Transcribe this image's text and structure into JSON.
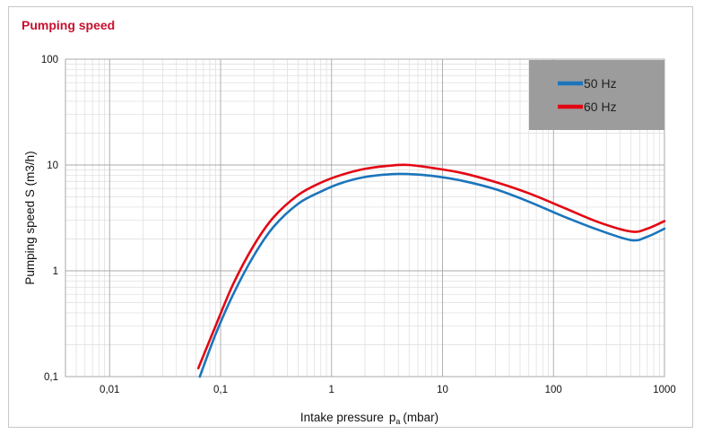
{
  "chart_data": {
    "type": "line",
    "title": "Pumping speed",
    "xlabel": "Intake pressure",
    "xlabel_symbol": "p",
    "xlabel_subscript": "a",
    "xlabel_unit": "(mbar)",
    "ylabel": "Pumping speed S (m3/h)",
    "x_scale": "log",
    "y_scale": "log",
    "xlim": [
      0.004,
      1000
    ],
    "ylim": [
      0.1,
      100
    ],
    "x_ticks": [
      {
        "value": 0.01,
        "label": "0,01"
      },
      {
        "value": 0.1,
        "label": "0,1"
      },
      {
        "value": 1,
        "label": "1"
      },
      {
        "value": 10,
        "label": "10"
      },
      {
        "value": 100,
        "label": "100"
      },
      {
        "value": 1000,
        "label": "1000"
      }
    ],
    "y_ticks": [
      {
        "value": 0.1,
        "label": "0,1"
      },
      {
        "value": 1,
        "label": "1"
      },
      {
        "value": 10,
        "label": "10"
      },
      {
        "value": 100,
        "label": "100"
      }
    ],
    "grid": true,
    "legend_position": "top-right",
    "series": [
      {
        "name": "50 Hz",
        "color": "#1b75bc",
        "x": [
          0.065,
          0.09,
          0.13,
          0.2,
          0.3,
          0.5,
          0.8,
          1.2,
          2,
          3.5,
          5,
          8,
          15,
          30,
          60,
          120,
          250,
          500,
          700,
          1000
        ],
        "y": [
          0.1,
          0.25,
          0.6,
          1.4,
          2.6,
          4.3,
          5.6,
          6.7,
          7.7,
          8.2,
          8.2,
          7.9,
          7.1,
          5.9,
          4.5,
          3.3,
          2.45,
          1.95,
          2.1,
          2.5
        ]
      },
      {
        "name": "60 Hz",
        "color": "#e30613",
        "x": [
          0.063,
          0.09,
          0.13,
          0.2,
          0.3,
          0.5,
          0.8,
          1.2,
          2,
          3.5,
          5,
          8,
          15,
          30,
          60,
          120,
          250,
          500,
          700,
          1000
        ],
        "y": [
          0.12,
          0.3,
          0.75,
          1.75,
          3.2,
          5.2,
          6.8,
          8.0,
          9.2,
          9.9,
          10.0,
          9.4,
          8.4,
          6.9,
          5.4,
          4.0,
          2.9,
          2.35,
          2.5,
          2.95
        ]
      }
    ]
  }
}
